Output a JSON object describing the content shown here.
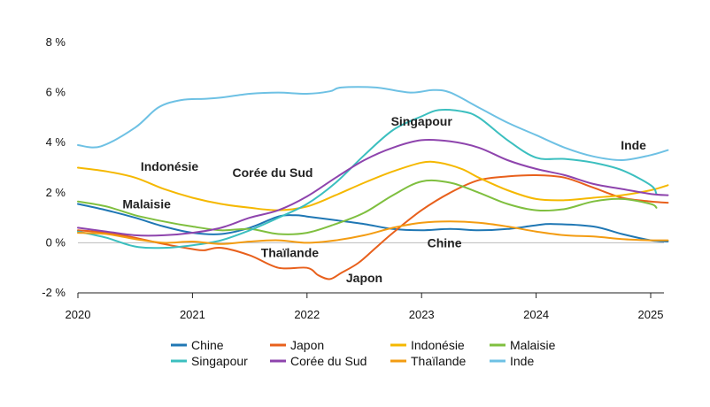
{
  "chart_data": {
    "type": "line",
    "ylim": [
      -2,
      8
    ],
    "xlim": [
      2020,
      2025.17
    ],
    "y_ticks": [
      -2,
      0,
      2,
      4,
      6,
      8
    ],
    "y_tick_labels": [
      "-2 %",
      "0 %",
      "2 %",
      "4 %",
      "6 %",
      "8 %"
    ],
    "x_ticks": [
      2020,
      2021,
      2022,
      2023,
      2024,
      2025
    ],
    "x_tick_labels": [
      "2020",
      "2021",
      "2022",
      "2023",
      "2024",
      "2025"
    ],
    "grid": false,
    "legend_position": "bottom",
    "series": [
      {
        "name": "Chine",
        "color": "#1f77b4",
        "x": [
          2020.0,
          2020.25,
          2020.5,
          2020.75,
          2021.0,
          2021.25,
          2021.5,
          2021.75,
          2021.9,
          2022.0,
          2022.25,
          2022.5,
          2022.75,
          2023.0,
          2023.25,
          2023.5,
          2023.75,
          2024.0,
          2024.15,
          2024.5,
          2024.75,
          2025.0,
          2025.15
        ],
        "y": [
          1.55,
          1.3,
          1.0,
          0.65,
          0.4,
          0.35,
          0.6,
          1.05,
          1.1,
          1.05,
          0.9,
          0.75,
          0.55,
          0.5,
          0.55,
          0.5,
          0.55,
          0.7,
          0.75,
          0.65,
          0.35,
          0.1,
          0.05
        ]
      },
      {
        "name": "Japon",
        "color": "#e8601c",
        "x": [
          2020.0,
          2020.25,
          2020.5,
          2020.75,
          2021.0,
          2021.1,
          2021.25,
          2021.5,
          2021.75,
          2022.0,
          2022.1,
          2022.2,
          2022.3,
          2022.45,
          2022.6,
          2022.75,
          2023.0,
          2023.25,
          2023.5,
          2023.75,
          2024.0,
          2024.25,
          2024.5,
          2024.75,
          2025.0,
          2025.15
        ],
        "y": [
          0.5,
          0.4,
          0.2,
          -0.05,
          -0.25,
          -0.3,
          -0.2,
          -0.5,
          -1.0,
          -1.0,
          -1.3,
          -1.45,
          -1.2,
          -0.8,
          -0.2,
          0.4,
          1.3,
          2.0,
          2.5,
          2.65,
          2.7,
          2.6,
          2.2,
          1.8,
          1.65,
          1.6
        ]
      },
      {
        "name": "Indonésie",
        "color": "#f5b800",
        "x": [
          2020.0,
          2020.25,
          2020.5,
          2020.75,
          2021.0,
          2021.25,
          2021.5,
          2021.75,
          2022.0,
          2022.25,
          2022.5,
          2022.75,
          2023.0,
          2023.15,
          2023.35,
          2023.5,
          2023.75,
          2024.0,
          2024.25,
          2024.5,
          2024.75,
          2025.0,
          2025.15
        ],
        "y": [
          3.0,
          2.85,
          2.6,
          2.15,
          1.8,
          1.55,
          1.4,
          1.3,
          1.45,
          1.9,
          2.4,
          2.85,
          3.2,
          3.2,
          2.95,
          2.6,
          2.1,
          1.75,
          1.7,
          1.8,
          1.9,
          2.1,
          2.3
        ]
      },
      {
        "name": "Malaisie",
        "color": "#7fbf3f",
        "x": [
          2020.0,
          2020.25,
          2020.5,
          2020.75,
          2021.0,
          2021.25,
          2021.5,
          2021.75,
          2022.0,
          2022.25,
          2022.5,
          2022.75,
          2023.0,
          2023.25,
          2023.5,
          2023.75,
          2024.0,
          2024.25,
          2024.5,
          2024.75,
          2025.0,
          2025.05
        ],
        "y": [
          1.65,
          1.45,
          1.1,
          0.85,
          0.65,
          0.5,
          0.55,
          0.35,
          0.4,
          0.75,
          1.2,
          1.9,
          2.45,
          2.4,
          2.0,
          1.55,
          1.3,
          1.35,
          1.65,
          1.75,
          1.55,
          1.4
        ]
      },
      {
        "name": "Singapour",
        "color": "#3bbfbf",
        "x": [
          2020.0,
          2020.25,
          2020.5,
          2020.75,
          2021.0,
          2021.25,
          2021.5,
          2021.75,
          2022.0,
          2022.25,
          2022.5,
          2022.75,
          2023.0,
          2023.15,
          2023.35,
          2023.5,
          2023.75,
          2024.0,
          2024.25,
          2024.5,
          2024.75,
          2025.0,
          2025.05
        ],
        "y": [
          0.45,
          0.2,
          -0.15,
          -0.2,
          -0.1,
          0.1,
          0.5,
          1.0,
          1.55,
          2.4,
          3.5,
          4.5,
          5.05,
          5.3,
          5.25,
          5.0,
          4.1,
          3.4,
          3.35,
          3.2,
          2.9,
          2.3,
          1.95
        ]
      },
      {
        "name": "Corée du Sud",
        "color": "#8e44ad",
        "x": [
          2020.0,
          2020.25,
          2020.5,
          2020.75,
          2021.0,
          2021.25,
          2021.5,
          2021.75,
          2022.0,
          2022.25,
          2022.5,
          2022.75,
          2023.0,
          2023.25,
          2023.5,
          2023.75,
          2024.0,
          2024.25,
          2024.5,
          2024.75,
          2025.0,
          2025.15
        ],
        "y": [
          0.6,
          0.45,
          0.3,
          0.3,
          0.4,
          0.6,
          1.0,
          1.3,
          1.85,
          2.6,
          3.3,
          3.8,
          4.1,
          4.05,
          3.8,
          3.3,
          2.95,
          2.7,
          2.35,
          2.15,
          1.95,
          1.9
        ]
      },
      {
        "name": "Thaïlande",
        "color": "#f39c12",
        "x": [
          2020.0,
          2020.25,
          2020.5,
          2020.75,
          2021.0,
          2021.25,
          2021.5,
          2021.75,
          2022.0,
          2022.25,
          2022.5,
          2022.75,
          2023.0,
          2023.25,
          2023.5,
          2023.75,
          2024.0,
          2024.25,
          2024.5,
          2024.75,
          2025.0,
          2025.15
        ],
        "y": [
          0.4,
          0.35,
          0.15,
          0.0,
          0.05,
          -0.05,
          0.05,
          0.1,
          0.0,
          0.1,
          0.3,
          0.6,
          0.8,
          0.85,
          0.8,
          0.65,
          0.45,
          0.3,
          0.25,
          0.15,
          0.1,
          0.1
        ]
      },
      {
        "name": "Inde",
        "color": "#6ec1e4",
        "x": [
          2020.0,
          2020.2,
          2020.5,
          2020.7,
          2020.9,
          2021.1,
          2021.25,
          2021.5,
          2021.75,
          2022.0,
          2022.2,
          2022.3,
          2022.6,
          2022.9,
          2023.1,
          2023.25,
          2023.5,
          2023.75,
          2024.0,
          2024.25,
          2024.5,
          2024.75,
          2025.0,
          2025.15
        ],
        "y": [
          3.9,
          3.85,
          4.6,
          5.4,
          5.7,
          5.75,
          5.8,
          5.95,
          6.0,
          5.95,
          6.05,
          6.2,
          6.2,
          6.0,
          6.1,
          6.0,
          5.4,
          4.8,
          4.3,
          3.8,
          3.45,
          3.3,
          3.5,
          3.7
        ]
      }
    ],
    "annotations": [
      {
        "text": "Singapour",
        "x": 2023.0,
        "y": 4.85
      },
      {
        "text": "Indonésie",
        "x": 2020.8,
        "y": 3.05
      },
      {
        "text": "Corée du Sud",
        "x": 2021.7,
        "y": 2.8
      },
      {
        "text": "Malaisie",
        "x": 2020.6,
        "y": 1.55
      },
      {
        "text": "Thaïlande",
        "x": 2021.85,
        "y": -0.4
      },
      {
        "text": "Japon",
        "x": 2022.5,
        "y": -1.4
      },
      {
        "text": "Chine",
        "x": 2023.2,
        "y": 0.0
      },
      {
        "text": "Inde",
        "x": 2024.85,
        "y": 3.9
      }
    ]
  }
}
